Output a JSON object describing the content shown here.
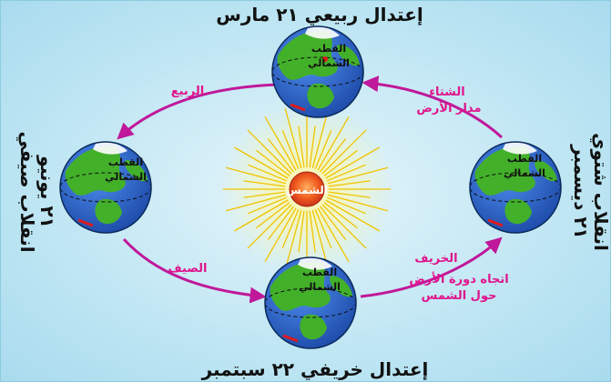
{
  "sun": {
    "label": "الشمس"
  },
  "globe_label": "القطب الشمالي",
  "globe_label_lines": [
    "القطب",
    "الشمالي"
  ],
  "positions": {
    "top": {
      "title": "إعتدال ربيعي ٢١ مارس"
    },
    "bottom": {
      "title": "إعتدال خريفي ٢٢ سبتمبر"
    },
    "left": {
      "title_line1": "انقلاب صيفي",
      "title_line2": "٢١ يونيو"
    },
    "right": {
      "title_line1": "٢١ ديسمبر",
      "title_line2": "انقلاب شتوي"
    }
  },
  "seasons": {
    "spring": "الربيع",
    "summer": "الصيف",
    "autumn": "الخريف",
    "winter": "الشتاء"
  },
  "orbit_label": "مدار الأرض",
  "rotation_label": [
    "اتجاه دورة الأرض",
    "حول الشمس"
  ],
  "colors": {
    "arrow": "#c0189a",
    "season_text": "#e0148c",
    "sun": "#f0c400",
    "sun_core": "#d8421c",
    "ocean": "#2a63c8",
    "land": "#43b02a"
  }
}
